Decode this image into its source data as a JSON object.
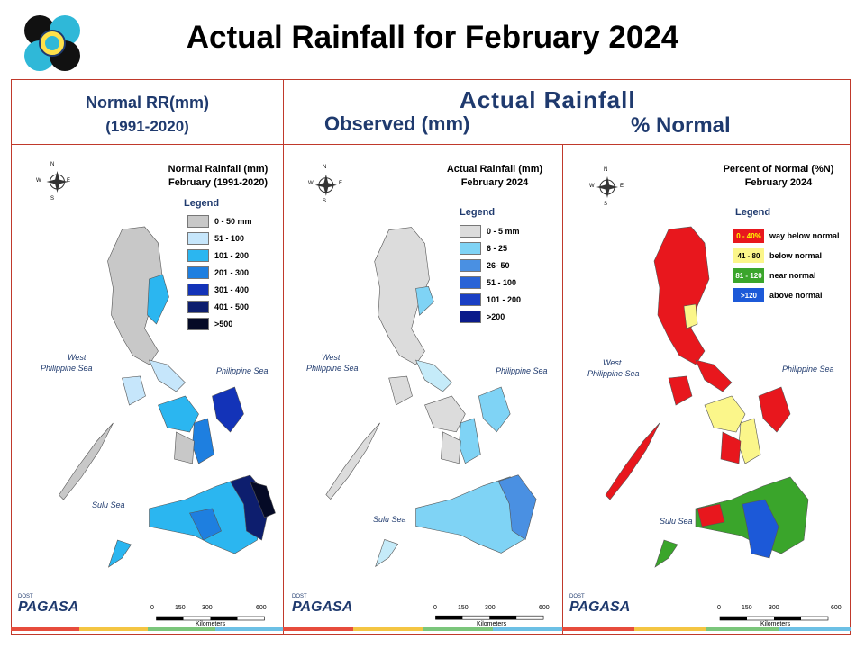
{
  "page": {
    "title": "Actual Rainfall for February 2024"
  },
  "headers": {
    "normal_line1": "Normal RR(mm)",
    "normal_line2": "(1991-2020)",
    "actual": "Actual Rainfall",
    "observed": "Observed (mm)",
    "percent": "% Normal"
  },
  "colors": {
    "frame": "#c0392b",
    "header_text": "#1f3a6e"
  },
  "panels": [
    {
      "map_title_1": "Normal Rainfall (mm)",
      "map_title_2": "February (1991-2020)",
      "legend_title": "Legend",
      "legend": [
        {
          "label": "0 - 50 mm",
          "color": "#c8c8c8"
        },
        {
          "label": "51 - 100",
          "color": "#c6e6fb"
        },
        {
          "label": "101 - 200",
          "color": "#2bb6f0"
        },
        {
          "label": "201 - 300",
          "color": "#1e7fe0"
        },
        {
          "label": "301 - 400",
          "color": "#1333b8"
        },
        {
          "label": "401 - 500",
          "color": "#0d1e6e"
        },
        {
          "label": ">500",
          "color": "#050a26"
        }
      ]
    },
    {
      "map_title_1": "Actual Rainfall (mm)",
      "map_title_2": "February  2024",
      "legend_title": "Legend",
      "legend": [
        {
          "label": "0 - 5 mm",
          "color": "#dcdcdc"
        },
        {
          "label": "6 - 25",
          "color": "#7fd3f5"
        },
        {
          "label": "26- 50",
          "color": "#4a90e2"
        },
        {
          "label": "51 - 100",
          "color": "#2a64d6"
        },
        {
          "label": "101 - 200",
          "color": "#1a3fc4"
        },
        {
          "label": ">200",
          "color": "#0a1b8a"
        }
      ]
    },
    {
      "map_title_1": "Percent of Normal (%N)",
      "map_title_2": "February 2024",
      "legend_title": "Legend",
      "legend": [
        {
          "range": "0 - 40%",
          "label": "way below normal",
          "color": "#e8171d",
          "text_color": "#ffff00"
        },
        {
          "range": "41 - 80",
          "label": "below normal",
          "color": "#fbf68a",
          "text_color": "#000000"
        },
        {
          "range": "81 - 120",
          "label": "near normal",
          "color": "#3aa52b",
          "text_color": "#ffffff"
        },
        {
          "range": ">120",
          "label": "above normal",
          "color": "#1c59d8",
          "text_color": "#ffffff"
        }
      ]
    }
  ],
  "map_labels": {
    "west_sea_1": "West",
    "west_sea_2": "Philippine Sea",
    "east_sea": "Philippine Sea",
    "sulu": "Sulu Sea",
    "compass_n": "N",
    "compass_s": "S",
    "compass_e": "E",
    "compass_w": "W",
    "scale_0": "0",
    "scale_150": "150",
    "scale_300": "300",
    "scale_600": "600",
    "scale_unit": "Kilometers",
    "brand_small": "DOST",
    "brand": "PAGASA"
  }
}
